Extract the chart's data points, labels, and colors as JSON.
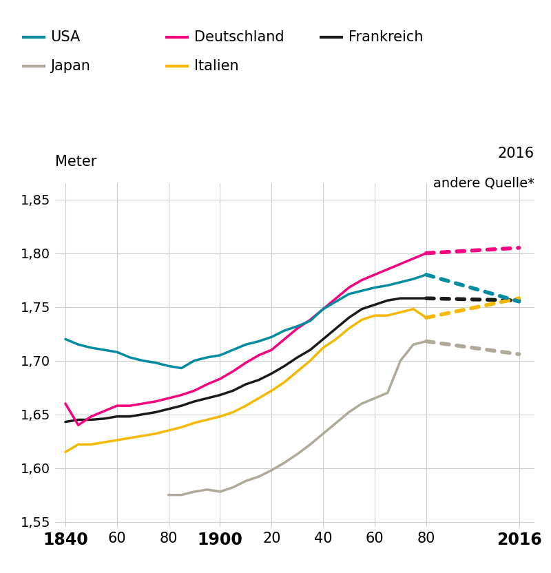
{
  "background_color": "#ffffff",
  "grid_color": "#cccccc",
  "colors": {
    "USA": "#008B9E",
    "Deutschland": "#F5007E",
    "Frankreich": "#1a1a1a",
    "Japan": "#b0a898",
    "Italien": "#F5B800"
  },
  "USA_solid": {
    "x": [
      1840,
      1845,
      1850,
      1855,
      1860,
      1865,
      1870,
      1875,
      1880,
      1885,
      1890,
      1895,
      1900,
      1905,
      1910,
      1915,
      1920,
      1925,
      1930,
      1935,
      1940,
      1945,
      1950,
      1955,
      1960,
      1965,
      1970,
      1975,
      1980
    ],
    "y": [
      1.72,
      1.715,
      1.712,
      1.71,
      1.708,
      1.703,
      1.7,
      1.698,
      1.695,
      1.693,
      1.7,
      1.703,
      1.705,
      1.71,
      1.715,
      1.718,
      1.722,
      1.728,
      1.732,
      1.737,
      1.748,
      1.755,
      1.762,
      1.765,
      1.768,
      1.77,
      1.773,
      1.776,
      1.78
    ]
  },
  "USA_dotted": {
    "x": [
      1980,
      2016
    ],
    "y": [
      1.78,
      1.755
    ]
  },
  "Deutschland_solid": {
    "x": [
      1840,
      1845,
      1850,
      1855,
      1860,
      1865,
      1870,
      1875,
      1880,
      1885,
      1890,
      1895,
      1900,
      1905,
      1910,
      1915,
      1920,
      1925,
      1930,
      1935,
      1940,
      1945,
      1950,
      1955,
      1960,
      1965,
      1970,
      1975,
      1980
    ],
    "y": [
      1.66,
      1.64,
      1.648,
      1.653,
      1.658,
      1.658,
      1.66,
      1.662,
      1.665,
      1.668,
      1.672,
      1.678,
      1.683,
      1.69,
      1.698,
      1.705,
      1.71,
      1.72,
      1.73,
      1.738,
      1.748,
      1.758,
      1.768,
      1.775,
      1.78,
      1.785,
      1.79,
      1.795,
      1.8
    ]
  },
  "Deutschland_dotted": {
    "x": [
      1980,
      2016
    ],
    "y": [
      1.8,
      1.805
    ]
  },
  "Frankreich_solid": {
    "x": [
      1840,
      1845,
      1850,
      1855,
      1860,
      1865,
      1870,
      1875,
      1880,
      1885,
      1890,
      1895,
      1900,
      1905,
      1910,
      1915,
      1920,
      1925,
      1930,
      1935,
      1940,
      1945,
      1950,
      1955,
      1960,
      1965,
      1970,
      1975,
      1980
    ],
    "y": [
      1.643,
      1.645,
      1.645,
      1.646,
      1.648,
      1.648,
      1.65,
      1.652,
      1.655,
      1.658,
      1.662,
      1.665,
      1.668,
      1.672,
      1.678,
      1.682,
      1.688,
      1.695,
      1.703,
      1.71,
      1.72,
      1.73,
      1.74,
      1.748,
      1.752,
      1.756,
      1.758,
      1.758,
      1.758
    ]
  },
  "Frankreich_dotted": {
    "x": [
      1980,
      2016
    ],
    "y": [
      1.758,
      1.756
    ]
  },
  "Japan_solid": {
    "x": [
      1880,
      1885,
      1890,
      1895,
      1900,
      1905,
      1910,
      1915,
      1920,
      1925,
      1930,
      1935,
      1940,
      1945,
      1950,
      1955,
      1960,
      1965,
      1970,
      1975,
      1980
    ],
    "y": [
      1.575,
      1.575,
      1.578,
      1.58,
      1.578,
      1.582,
      1.588,
      1.592,
      1.598,
      1.605,
      1.613,
      1.622,
      1.632,
      1.642,
      1.652,
      1.66,
      1.665,
      1.67,
      1.7,
      1.715,
      1.718
    ]
  },
  "Japan_dotted": {
    "x": [
      1980,
      2016
    ],
    "y": [
      1.718,
      1.706
    ]
  },
  "Italien_solid": {
    "x": [
      1840,
      1845,
      1850,
      1855,
      1860,
      1865,
      1870,
      1875,
      1880,
      1885,
      1890,
      1895,
      1900,
      1905,
      1910,
      1915,
      1920,
      1925,
      1930,
      1935,
      1940,
      1945,
      1950,
      1955,
      1960,
      1965,
      1970,
      1975,
      1980
    ],
    "y": [
      1.615,
      1.622,
      1.622,
      1.624,
      1.626,
      1.628,
      1.63,
      1.632,
      1.635,
      1.638,
      1.642,
      1.645,
      1.648,
      1.652,
      1.658,
      1.665,
      1.672,
      1.68,
      1.69,
      1.7,
      1.712,
      1.72,
      1.73,
      1.738,
      1.742,
      1.742,
      1.745,
      1.748,
      1.74
    ]
  },
  "Italien_dotted": {
    "x": [
      1980,
      2016
    ],
    "y": [
      1.74,
      1.758
    ]
  },
  "xticks": [
    1840,
    1860,
    1880,
    1900,
    1920,
    1940,
    1960,
    1980,
    2016
  ],
  "xticklabels": [
    "1840",
    "60",
    "80",
    "1900",
    "20",
    "40",
    "60",
    "80",
    "2016"
  ],
  "xtick_bold": [
    0,
    3,
    8
  ],
  "yticks": [
    1.55,
    1.6,
    1.65,
    1.7,
    1.75,
    1.8,
    1.85
  ],
  "yticklabels": [
    "1,55",
    "1,60",
    "1,65",
    "1,70",
    "1,75",
    "1,80",
    "1,85"
  ],
  "ylim": [
    1.545,
    1.865
  ],
  "xlim": [
    1836,
    2022
  ],
  "ylabel": "Meter",
  "annotation_right": "andere Quelle*",
  "annotation_right_year": "2016"
}
